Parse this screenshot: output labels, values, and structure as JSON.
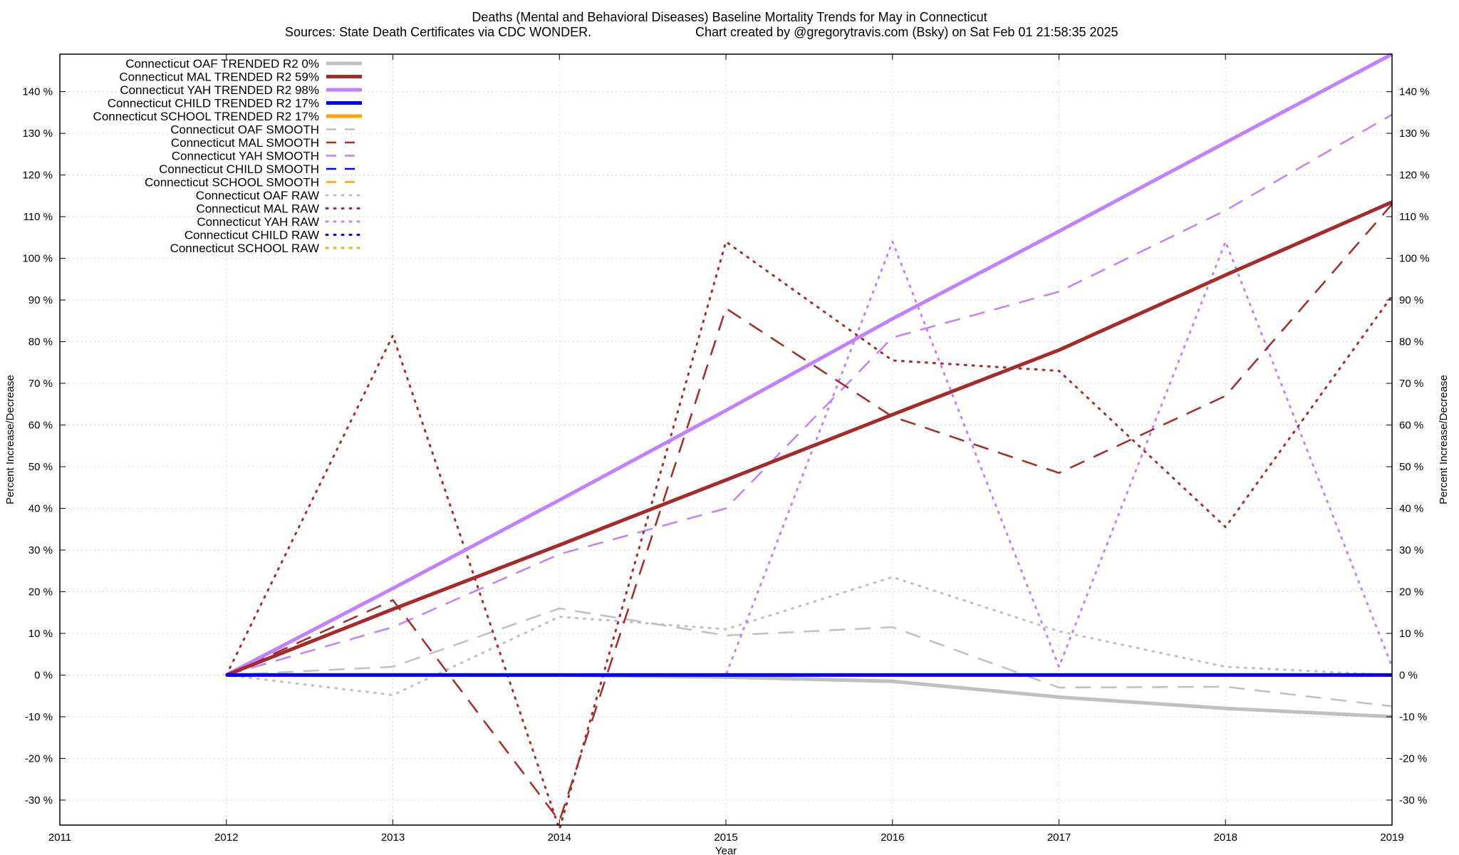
{
  "chart_data": {
    "type": "line",
    "title": "Deaths (Mental and Behavioral Diseases)  Baseline Mortality Trends for May in Connecticut",
    "subtitle_left": "Sources: State Death Certificates via CDC WONDER.",
    "subtitle_right": "Chart created by @gregorytravis.com (Bsky) on Sat Feb 01 21:58:35 2025",
    "xlabel": "Year",
    "ylabel": "Percent Increase/Decrease",
    "y2label": "Percent Increase/Decrease",
    "xlim": [
      2011,
      2019
    ],
    "ylim": [
      -36,
      149
    ],
    "x_ticks": [
      "2011",
      "2012",
      "2013",
      "2014",
      "2015",
      "2016",
      "2017",
      "2018",
      "2019"
    ],
    "x_tick_values": [
      2011,
      2012,
      2013,
      2014,
      2015,
      2016,
      2017,
      2018,
      2019
    ],
    "y_ticks": [
      "140 %",
      "130 %",
      "120 %",
      "110 %",
      "100 %",
      "90 %",
      "80 %",
      "70 %",
      "60 %",
      "50 %",
      "40 %",
      "30 %",
      "20 %",
      "10 %",
      "0 %",
      "-10 %",
      "-20 %",
      "-30 %"
    ],
    "y_tick_values": [
      140,
      130,
      120,
      110,
      100,
      90,
      80,
      70,
      60,
      50,
      40,
      30,
      20,
      10,
      0,
      -10,
      -20,
      -30
    ],
    "grid": true,
    "legend_position": "top-left",
    "x": [
      2012,
      2013,
      2014,
      2015,
      2016,
      2017,
      2018,
      2019
    ],
    "series": [
      {
        "name": "Connecticut OAF TRENDED R2  0%",
        "style": "solid",
        "color": "#c0c0c0",
        "values": [
          0,
          0,
          0,
          -0.5,
          -1.5,
          -5.3,
          -8,
          -10
        ]
      },
      {
        "name": "Connecticut MAL TRENDED R2  59%",
        "style": "solid",
        "color": "#a52a2a",
        "values": [
          0,
          15.8,
          31.2,
          46.8,
          62.5,
          78,
          96,
          113.5
        ]
      },
      {
        "name": "Connecticut YAH TRENDED R2  98%",
        "style": "solid",
        "color": "#c080ff",
        "values": [
          0,
          20.8,
          42,
          63.5,
          85.5,
          106.5,
          127.8,
          149
        ]
      },
      {
        "name": "Connecticut CHILD TRENDED R2  17%",
        "style": "solid",
        "color": "#0000ff",
        "values": [
          0,
          0,
          0,
          0,
          0,
          0,
          0,
          0
        ]
      },
      {
        "name": "Connecticut SCHOOL TRENDED R2  17%",
        "style": "solid",
        "color": "#ffa500",
        "values": [
          0,
          0,
          0,
          0,
          0,
          0,
          0,
          0
        ]
      },
      {
        "name": "Connecticut OAF SMOOTH",
        "style": "dash",
        "color": "#c0c0c0",
        "values": [
          0,
          2,
          16,
          9.5,
          11.5,
          -3,
          -2.8,
          -7.5
        ]
      },
      {
        "name": "Connecticut MAL SMOOTH",
        "style": "dash",
        "color": "#a52a2a",
        "values": [
          0,
          18,
          -35,
          88,
          62,
          48.5,
          67,
          113
        ]
      },
      {
        "name": "Connecticut YAH SMOOTH",
        "style": "dash",
        "color": "#c080ff",
        "values": [
          0,
          11.5,
          29,
          40,
          81,
          92,
          111.5,
          134.5
        ]
      },
      {
        "name": "Connecticut CHILD SMOOTH",
        "style": "dash",
        "color": "#0000ff",
        "values": [
          0,
          0,
          0,
          0,
          0,
          0,
          0,
          0
        ]
      },
      {
        "name": "Connecticut SCHOOL SMOOTH",
        "style": "dash",
        "color": "#ffa500",
        "values": [
          0,
          0,
          0,
          0,
          0,
          0,
          0,
          0
        ]
      },
      {
        "name": "Connecticut OAF RAW",
        "style": "dot",
        "color": "#c0c0c0",
        "values": [
          0,
          -4.8,
          14,
          11,
          23.5,
          10.5,
          2,
          0
        ]
      },
      {
        "name": "Connecticut MAL RAW",
        "style": "dot",
        "color": "#a52a2a",
        "values": [
          0,
          81.5,
          -37,
          104,
          75.5,
          73,
          35.5,
          91
        ]
      },
      {
        "name": "Connecticut YAH RAW",
        "style": "dot",
        "color": "#c080ff",
        "values": [
          0,
          0,
          0,
          0,
          104,
          2,
          104,
          2
        ]
      },
      {
        "name": "Connecticut CHILD RAW",
        "style": "dot",
        "color": "#0000ff",
        "values": [
          0,
          0,
          0,
          0,
          0,
          0,
          0,
          0
        ]
      },
      {
        "name": "Connecticut SCHOOL RAW",
        "style": "dot",
        "color": "#ffa500",
        "values": [
          0,
          0,
          0,
          0,
          0,
          0,
          0,
          0
        ]
      }
    ],
    "draw_order": [
      4,
      9,
      14,
      10,
      5,
      0,
      12,
      7,
      11,
      6,
      2,
      1,
      3,
      8,
      13
    ]
  }
}
